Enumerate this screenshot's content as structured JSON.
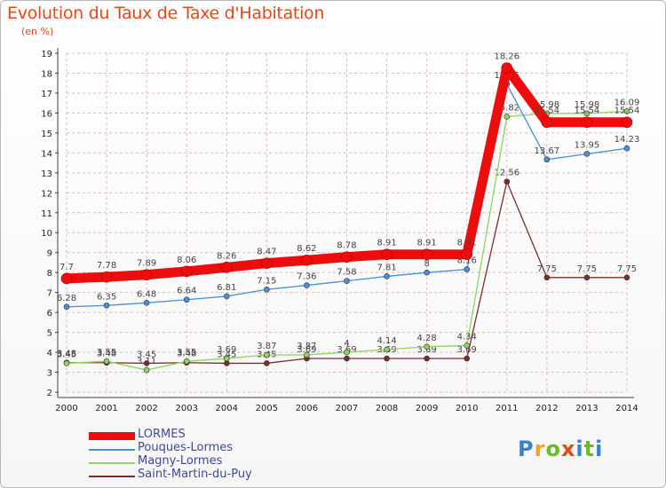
{
  "header": {
    "title": "Evolution du Taux de Taxe d'Habitation",
    "unit": "(en %)"
  },
  "logo": {
    "text": "Proxiti",
    "colors": [
      "#3a7fd0",
      "#f5a31b",
      "#6bb82a",
      "#e3481a",
      "#3a7fd0",
      "#6bb82a",
      "#3a7fd0"
    ]
  },
  "colors": {
    "title": "#e3481a",
    "grid": "#e6b8b8",
    "axis": "#444444"
  },
  "chart_data": {
    "type": "line",
    "title": "Evolution du Taux de Taxe d'Habitation",
    "ylabel": "(en %)",
    "xlabel": "",
    "ylim": [
      2,
      19
    ],
    "grid": true,
    "legend_position": "bottom-left",
    "categories": [
      "2000",
      "2001",
      "2002",
      "2003",
      "2004",
      "2005",
      "2006",
      "2007",
      "2008",
      "2009",
      "2010",
      "2011",
      "2012",
      "2013",
      "2014"
    ],
    "y_ticks": [
      "2",
      "3",
      "4",
      "5",
      "6",
      "7",
      "8",
      "9",
      "10",
      "11",
      "12",
      "13",
      "14",
      "15",
      "16",
      "17",
      "18",
      "19"
    ],
    "series": [
      {
        "name": "Saint-Martin-du-Puy",
        "color": "#7a2e2e",
        "values": [
          3.48,
          3.48,
          3.45,
          3.48,
          3.45,
          3.45,
          3.69,
          3.69,
          3.69,
          3.69,
          3.69,
          12.56,
          7.75,
          7.75,
          7.75
        ],
        "labels": [
          "3.48",
          "3.48",
          "3.45",
          "3.48",
          "3.45",
          "3.45",
          "3.69",
          "3.69",
          "3.69",
          "3.69",
          "3.69",
          "12.56",
          "7.75",
          "7.75",
          "7.75"
        ]
      },
      {
        "name": "Magny-Lormes",
        "color": "#8fd45e",
        "values": [
          3.45,
          3.55,
          3.11,
          3.55,
          3.69,
          3.87,
          3.87,
          4,
          4.14,
          4.28,
          4.34,
          15.82,
          15.98,
          15.98,
          16.09
        ],
        "labels": [
          "3.45",
          "3.55",
          "3.11",
          "3.55",
          "3.69",
          "3.87",
          "3.87",
          "4",
          "4.14",
          "4.28",
          "4.34",
          "15.82",
          "15.98",
          "15.98",
          "16.09"
        ]
      },
      {
        "name": "Pouques-Lormes",
        "color": "#4a90d6",
        "values": [
          6.28,
          6.35,
          6.48,
          6.64,
          6.81,
          7.15,
          7.36,
          7.58,
          7.81,
          8,
          8.16,
          17.45,
          13.67,
          13.95,
          14.23
        ],
        "labels": [
          "6.28",
          "6.35",
          "6.48",
          "6.64",
          "6.81",
          "7.15",
          "7.36",
          "7.58",
          "7.81",
          "8",
          "8.16",
          "17.45",
          "13.67",
          "13.95",
          "14.23"
        ]
      },
      {
        "name": "LORMES",
        "color": "#ee0d0d",
        "values": [
          7.7,
          7.78,
          7.89,
          8.06,
          8.26,
          8.47,
          8.62,
          8.78,
          8.91,
          8.91,
          8.91,
          18.26,
          15.54,
          15.54,
          15.54
        ],
        "labels": [
          "7.7",
          "7.78",
          "7.89",
          "8.06",
          "8.26",
          "8.47",
          "8.62",
          "8.78",
          "8.91",
          "8.91",
          "8.91",
          "18.26",
          "15.54",
          "15.54",
          "15.54"
        ]
      }
    ]
  }
}
